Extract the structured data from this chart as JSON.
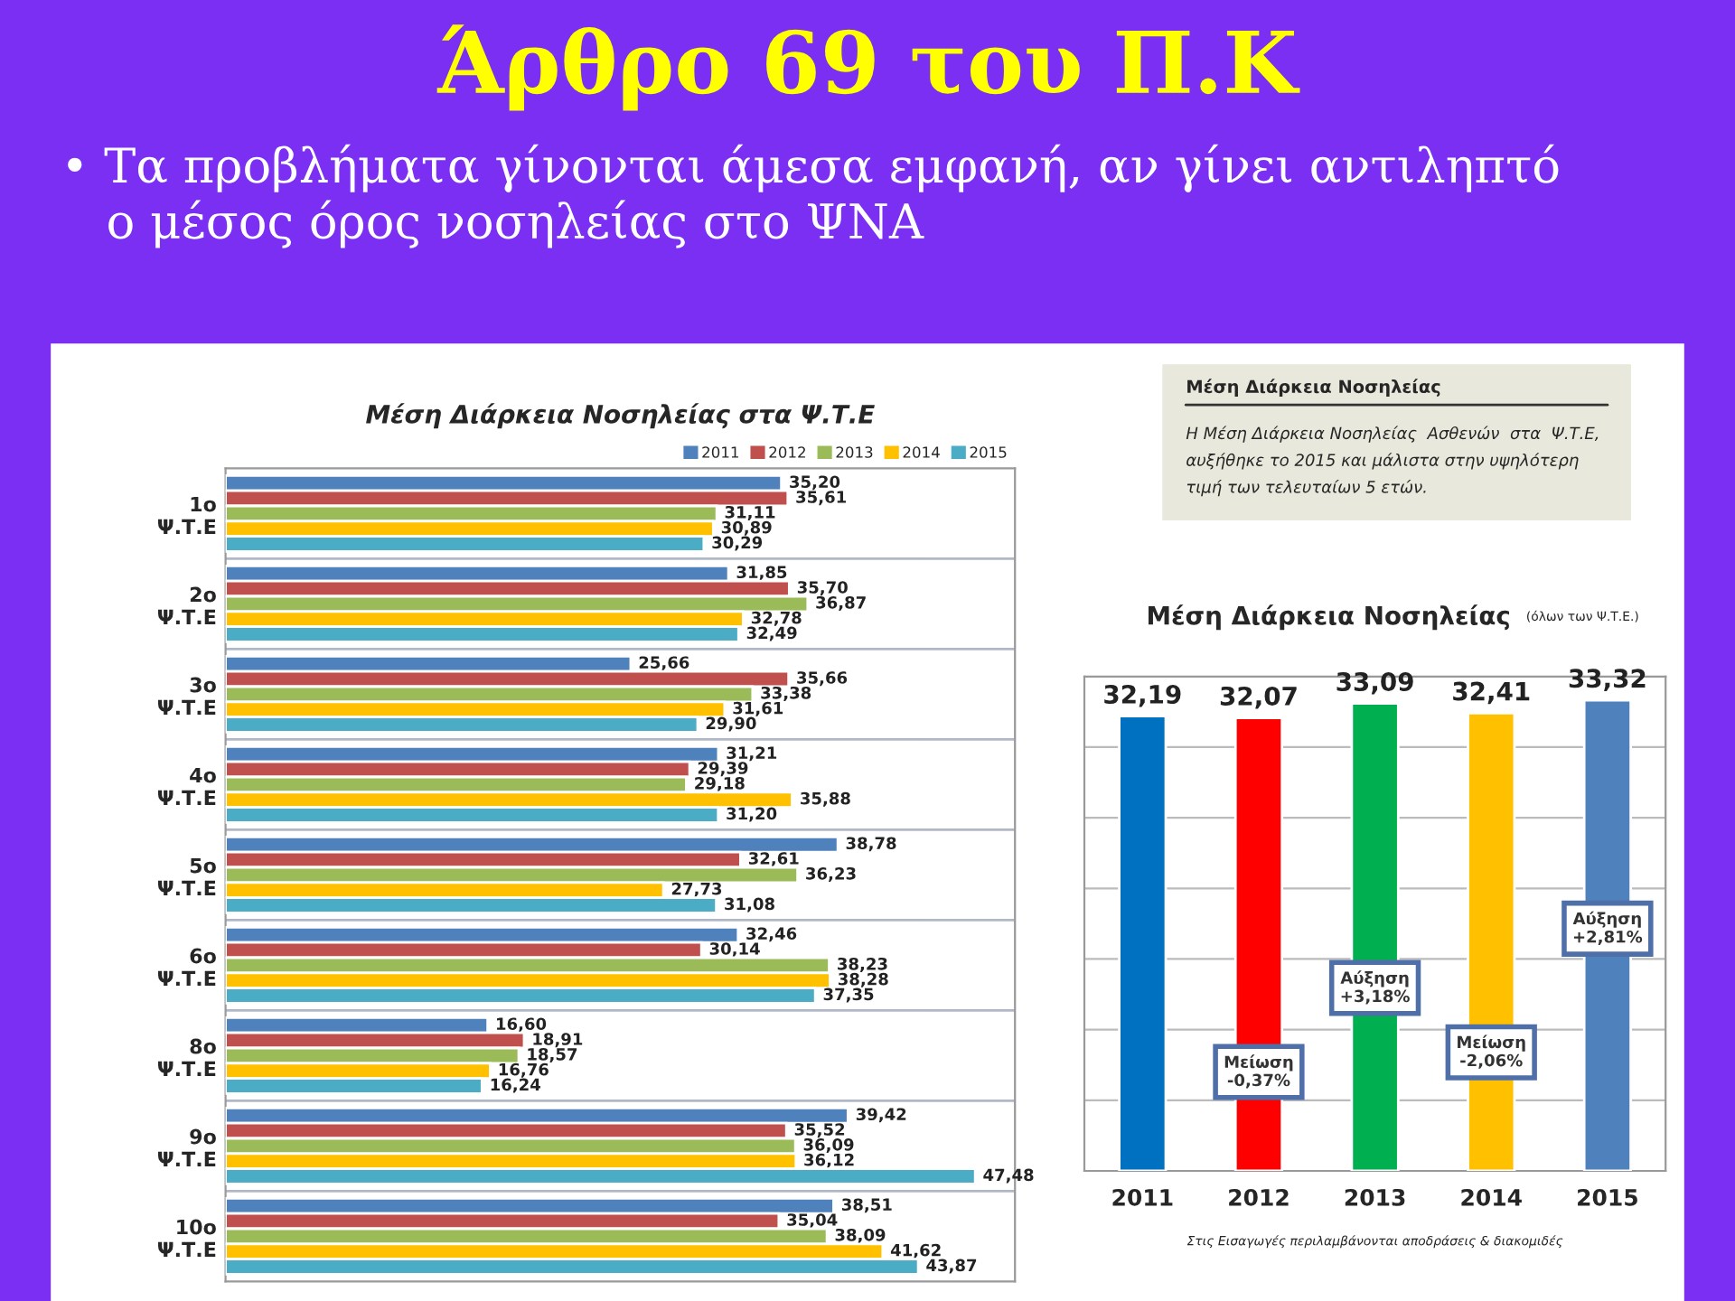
{
  "chart_data": [
    {
      "type": "other",
      "title": "Άρθρο 69 του Π.Κ",
      "annotations": [
        "• Τα προβλήματα γίνονται άμεσα εμφανή, αν γίνει αντιληπτό\n   ο μέσος όρος νοσηλείας στο ΨΝΑ"
      ]
    },
    {
      "type": "bar",
      "orientation": "horizontal",
      "title": "Μέση Διάρκεια Νοσηλείας στα Ψ.Τ.Ε",
      "xlim": [
        0,
        50
      ],
      "tick_labels": "y",
      "legend": "top right",
      "categories": [
        "1ο\nΨ.Τ.Ε",
        "2ο\nΨ.Τ.Ε",
        "3ο\nΨ.Τ.Ε",
        "4ο\nΨ.Τ.Ε",
        "5ο\nΨ.Τ.Ε",
        "6ο\nΨ.Τ.Ε",
        "8ο\nΨ.Τ.Ε",
        "9ο\nΨ.Τ.Ε",
        "10ο\nΨ.Τ.Ε"
      ],
      "series": [
        {
          "name": "2011",
          "color": "#4f81bd",
          "values": [
            35.2,
            31.85,
            25.66,
            31.21,
            38.78,
            32.46,
            16.6,
            39.42,
            38.51
          ],
          "value_labels": [
            "35,20",
            "31,85",
            "25,66",
            "31,21",
            "38,78",
            "32,46",
            "16,60",
            "39,42",
            "38,51"
          ]
        },
        {
          "name": "2012",
          "color": "#c0504d",
          "values": [
            35.61,
            35.7,
            35.66,
            29.39,
            32.61,
            30.14,
            18.91,
            35.52,
            35.04
          ],
          "value_labels": [
            "35,61",
            "35,70",
            "35,66",
            "29,39",
            "32,61",
            "30,14",
            "18,91",
            "35,52",
            "35,04"
          ]
        },
        {
          "name": "2013",
          "color": "#9bbb59",
          "values": [
            31.11,
            36.87,
            33.38,
            29.18,
            36.23,
            38.23,
            18.57,
            36.09,
            38.09
          ],
          "value_labels": [
            "31,11",
            "36,87",
            "33,38",
            "29,18",
            "36,23",
            "38,23",
            "18,57",
            "36,09",
            "38,09"
          ]
        },
        {
          "name": "2014",
          "color": "#ffc000",
          "values": [
            30.89,
            32.78,
            31.61,
            35.88,
            27.73,
            38.28,
            16.76,
            36.12,
            41.62
          ],
          "value_labels": [
            "30,89",
            "32,78",
            "31,61",
            "35,88",
            "27,73",
            "38,28",
            "16,76",
            "36,12",
            "41,62"
          ]
        },
        {
          "name": "2015",
          "color": "#4bacc6",
          "values": [
            30.29,
            32.49,
            29.9,
            31.2,
            31.08,
            37.35,
            16.24,
            47.48,
            43.87
          ],
          "value_labels": [
            "30,29",
            "32,49",
            "29,90",
            "31,20",
            "31,08",
            "37,35",
            "16,24",
            "47,48",
            "43,87"
          ]
        }
      ]
    },
    {
      "type": "other",
      "title": "Μέση Διάρκεια Νοσηλείας",
      "annotations": [
        "Η Μέση Διάρκεια Νοσηλείας  Ασθενών  στα  Ψ.Τ.Ε,\nαυξήθηκε το 2015 και μάλιστα στην υψηλότερη\nτιμή των τελευταίων 5 ετών."
      ]
    },
    {
      "type": "bar",
      "title": "Μέση Διάρκεια Νοσηλείας",
      "subtitle": "(όλων των Ψ.Τ.Ε.)",
      "ylim": [
        0,
        35
      ],
      "tick_labels": "x",
      "grid": "y",
      "yticks": [
        {
          "value": 0,
          "label": null
        },
        {
          "value": 5,
          "label": null
        },
        {
          "value": 10,
          "label": null
        },
        {
          "value": 15,
          "label": null
        },
        {
          "value": 20,
          "label": null
        },
        {
          "value": 25,
          "label": null
        },
        {
          "value": 30,
          "label": null
        },
        {
          "value": 35,
          "label": null
        }
      ],
      "categories": [
        "2011",
        "2012",
        "2013",
        "2014",
        "2015"
      ],
      "values": [
        32.19,
        32.07,
        33.09,
        32.41,
        33.32
      ],
      "value_labels": [
        "32,19",
        "32,07",
        "33,09",
        "32,41",
        "33,32"
      ],
      "colors": [
        "#0070c0",
        "#ff0000",
        "#00b050",
        "#ffc000",
        "#4f81bd"
      ],
      "annotations": [
        "Μείωση\n-0,37%",
        "Αύξηση\n+3,18%",
        "Μείωση\n-2,06%",
        "Αύξηση\n+2,81%",
        "Στις Εισαγωγές περιλαμβάνονται αποδράσεις & διακομιδές"
      ]
    }
  ]
}
